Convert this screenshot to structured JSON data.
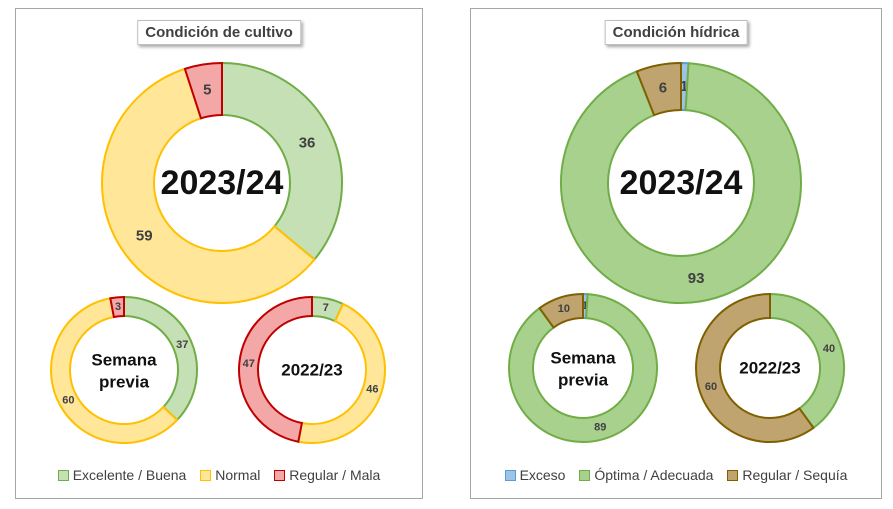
{
  "colors": {
    "green_fill": "#c5e0b4",
    "green_stroke": "#70ad47",
    "yellow_fill": "#ffe699",
    "yellow_stroke": "#ffc000",
    "red_fill": "#f4a7a7",
    "red_stroke": "#c00000",
    "blue_fill": "#9dc3e6",
    "blue_stroke": "#5b9bd5",
    "mid_green_fill": "#a9d18e",
    "mid_green_stroke": "#70ad47",
    "brown_fill": "#c0a470",
    "brown_stroke": "#7f6000"
  },
  "chart_data": [
    {
      "type": "pie",
      "title": "Condición de cultivo",
      "legend": [
        "Excelente / Buena",
        "Normal",
        "Regular / Mala"
      ],
      "legend_placement": "bottom",
      "donuts": [
        {
          "label": "2023/24",
          "values": [
            36,
            59,
            5
          ]
        },
        {
          "label": "Semana previa",
          "values": [
            37,
            60,
            3
          ]
        },
        {
          "label": "2022/23",
          "values": [
            7,
            46,
            47
          ]
        }
      ]
    },
    {
      "type": "pie",
      "title": "Condición hídrica",
      "legend": [
        "Exceso",
        "Óptima / Adecuada",
        "Regular / Sequía"
      ],
      "legend_placement": "bottom",
      "donuts": [
        {
          "label": "2023/24",
          "values": [
            1,
            93,
            6
          ]
        },
        {
          "label": "Semana previa",
          "values": [
            1,
            89,
            10
          ]
        },
        {
          "label": "2022/23",
          "values": [
            0,
            40,
            60
          ]
        }
      ]
    }
  ]
}
